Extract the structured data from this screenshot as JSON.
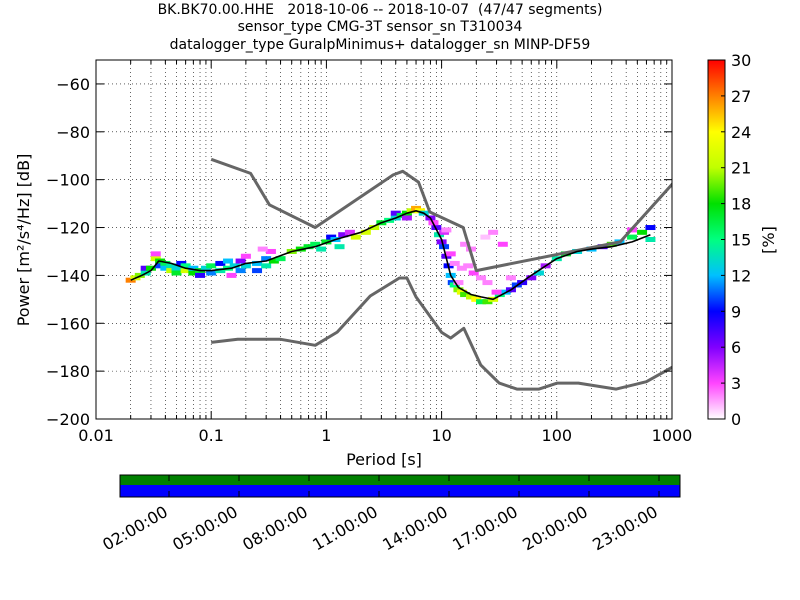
{
  "title": {
    "line1": "BK.BK70.00.HHE   2018-10-06 -- 2018-10-07  (47/47 segments)",
    "line2": "sensor_type CMG-3T sensor_sn T310034",
    "line3": "datalogger_type GuralpMinimus+ datalogger_sn MINP-DF59"
  },
  "chart_data": {
    "type": "heatmap",
    "xlabel": "Period [s]",
    "ylabel": "Power [m²/s⁴/Hz] [dB]",
    "xscale": "log",
    "xlim": [
      0.01,
      1000
    ],
    "ylim": [
      -200,
      -50
    ],
    "xticks": [
      {
        "value": 0.01,
        "label": "0.01"
      },
      {
        "value": 0.1,
        "label": "0.1"
      },
      {
        "value": 1,
        "label": "1"
      },
      {
        "value": 10,
        "label": "10"
      },
      {
        "value": 100,
        "label": "100"
      },
      {
        "value": 1000,
        "label": "1000"
      }
    ],
    "yticks": [
      {
        "value": -60,
        "label": "−60"
      },
      {
        "value": -80,
        "label": "−80"
      },
      {
        "value": -100,
        "label": "−100"
      },
      {
        "value": -120,
        "label": "−120"
      },
      {
        "value": -140,
        "label": "−140"
      },
      {
        "value": -160,
        "label": "−160"
      },
      {
        "value": -180,
        "label": "−180"
      },
      {
        "value": -200,
        "label": "−200"
      }
    ],
    "grid": true,
    "colorbar": {
      "label": "[%]",
      "range": [
        0,
        30
      ],
      "ticks": [
        "0",
        "3",
        "6",
        "9",
        "12",
        "15",
        "18",
        "21",
        "24",
        "27",
        "30"
      ],
      "colors": [
        "#ffffff",
        "#ff44ff",
        "#8000ff",
        "#0000ff",
        "#00c0ff",
        "#00ff80",
        "#00e000",
        "#c0ff00",
        "#ffff00",
        "#ff8000",
        "#ff0000"
      ]
    },
    "series": [
      {
        "id": "nhnm",
        "color": "#666666",
        "x": [
          0.1,
          0.22,
          0.32,
          0.8,
          3.8,
          4.6,
          6.3,
          7.9,
          15.4,
          20,
          354.8,
          10000
        ],
        "y": [
          -91.5,
          -97.4,
          -110.5,
          -120,
          -98,
          -96.5,
          -101,
          -113.5,
          -120,
          -138,
          -126,
          -48.5
        ]
      },
      {
        "id": "nlnm",
        "color": "#666666",
        "x": [
          0.1,
          0.17,
          0.4,
          0.8,
          1.24,
          2.4,
          4.3,
          5,
          6,
          10,
          12,
          15.6,
          21.9,
          31.6,
          45,
          70,
          101,
          154,
          328,
          600,
          10000
        ],
        "y": [
          -168,
          -166.7,
          -166.7,
          -169.2,
          -163.7,
          -148.6,
          -141.1,
          -141.1,
          -149,
          -163.8,
          -166.2,
          -162.1,
          -177.5,
          -185,
          -187.5,
          -187.5,
          -185,
          -185,
          -187.5,
          -184.4,
          -151.5
        ]
      },
      {
        "id": "mode",
        "color": "#000000",
        "x": [
          0.02,
          0.025,
          0.03,
          0.035,
          0.045,
          0.06,
          0.08,
          0.1,
          0.15,
          0.2,
          0.3,
          0.5,
          0.8,
          1.2,
          2,
          3,
          4,
          5,
          6,
          7,
          8,
          10,
          12,
          14,
          18,
          22,
          28,
          40,
          60,
          100,
          150,
          200,
          300,
          450,
          650
        ],
        "y": [
          -142,
          -140,
          -138,
          -134,
          -135,
          -137,
          -138,
          -138,
          -137,
          -135,
          -134,
          -130,
          -128,
          -125,
          -122,
          -118,
          -116,
          -114,
          -113,
          -114,
          -116,
          -125,
          -140,
          -145,
          -148,
          -149,
          -150,
          -146,
          -140,
          -133,
          -130,
          -129,
          -128,
          -126,
          -123
        ]
      }
    ],
    "density": [
      {
        "x": 0.02,
        "y": -142,
        "pct": 27
      },
      {
        "x": 0.022,
        "y": -141,
        "pct": 22
      },
      {
        "x": 0.024,
        "y": -140,
        "pct": 20
      },
      {
        "x": 0.027,
        "y": -139,
        "pct": 14
      },
      {
        "x": 0.027,
        "y": -137,
        "pct": 7
      },
      {
        "x": 0.03,
        "y": -137,
        "pct": 18
      },
      {
        "x": 0.033,
        "y": -133,
        "pct": 22
      },
      {
        "x": 0.033,
        "y": -131,
        "pct": 3
      },
      {
        "x": 0.036,
        "y": -134,
        "pct": 18
      },
      {
        "x": 0.036,
        "y": -136,
        "pct": 10
      },
      {
        "x": 0.04,
        "y": -135,
        "pct": 16
      },
      {
        "x": 0.04,
        "y": -137,
        "pct": 12
      },
      {
        "x": 0.045,
        "y": -136,
        "pct": 14
      },
      {
        "x": 0.045,
        "y": -138,
        "pct": 21
      },
      {
        "x": 0.05,
        "y": -137,
        "pct": 13
      },
      {
        "x": 0.05,
        "y": -139,
        "pct": 17
      },
      {
        "x": 0.055,
        "y": -135,
        "pct": 9
      },
      {
        "x": 0.06,
        "y": -138,
        "pct": 22
      },
      {
        "x": 0.06,
        "y": -136,
        "pct": 15
      },
      {
        "x": 0.07,
        "y": -139,
        "pct": 18
      },
      {
        "x": 0.07,
        "y": -137,
        "pct": 12
      },
      {
        "x": 0.08,
        "y": -138,
        "pct": 17
      },
      {
        "x": 0.08,
        "y": -140,
        "pct": 8
      },
      {
        "x": 0.09,
        "y": -137,
        "pct": 13
      },
      {
        "x": 0.1,
        "y": -139,
        "pct": 11
      },
      {
        "x": 0.1,
        "y": -136,
        "pct": 16
      },
      {
        "x": 0.12,
        "y": -138,
        "pct": 14
      },
      {
        "x": 0.12,
        "y": -135,
        "pct": 9
      },
      {
        "x": 0.14,
        "y": -137,
        "pct": 15
      },
      {
        "x": 0.14,
        "y": -134,
        "pct": 12
      },
      {
        "x": 0.16,
        "y": -136,
        "pct": 13
      },
      {
        "x": 0.18,
        "y": -138,
        "pct": 11
      },
      {
        "x": 0.18,
        "y": -134,
        "pct": 6
      },
      {
        "x": 0.2,
        "y": -136,
        "pct": 13
      },
      {
        "x": 0.2,
        "y": -132,
        "pct": 3
      },
      {
        "x": 0.25,
        "y": -135,
        "pct": 12
      },
      {
        "x": 0.25,
        "y": -138,
        "pct": 10
      },
      {
        "x": 0.3,
        "y": -133,
        "pct": 11
      },
      {
        "x": 0.3,
        "y": -136,
        "pct": 14
      },
      {
        "x": 0.35,
        "y": -134,
        "pct": 18
      },
      {
        "x": 0.4,
        "y": -133,
        "pct": 16
      },
      {
        "x": 0.5,
        "y": -130,
        "pct": 20
      },
      {
        "x": 0.6,
        "y": -129,
        "pct": 18
      },
      {
        "x": 0.7,
        "y": -128,
        "pct": 17
      },
      {
        "x": 0.8,
        "y": -127,
        "pct": 16
      },
      {
        "x": 0.9,
        "y": -129,
        "pct": 14
      },
      {
        "x": 1.0,
        "y": -126,
        "pct": 17
      },
      {
        "x": 1.1,
        "y": -124,
        "pct": 9
      },
      {
        "x": 1.2,
        "y": -125,
        "pct": 12
      },
      {
        "x": 1.4,
        "y": -123,
        "pct": 6
      },
      {
        "x": 1.6,
        "y": -122,
        "pct": 4
      },
      {
        "x": 1.3,
        "y": -128,
        "pct": 14
      },
      {
        "x": 1.8,
        "y": -124,
        "pct": 22
      },
      {
        "x": 2.2,
        "y": -122,
        "pct": 22
      },
      {
        "x": 2.6,
        "y": -120,
        "pct": 21
      },
      {
        "x": 3.0,
        "y": -118,
        "pct": 17
      },
      {
        "x": 3.5,
        "y": -117,
        "pct": 15
      },
      {
        "x": 4.0,
        "y": -116,
        "pct": 13
      },
      {
        "x": 4.0,
        "y": -114,
        "pct": 7
      },
      {
        "x": 4.5,
        "y": -115,
        "pct": 16
      },
      {
        "x": 5.0,
        "y": -114,
        "pct": 18
      },
      {
        "x": 5.0,
        "y": -116,
        "pct": 5
      },
      {
        "x": 5.5,
        "y": -113,
        "pct": 21
      },
      {
        "x": 6.0,
        "y": -112,
        "pct": 26
      },
      {
        "x": 6.5,
        "y": -113,
        "pct": 24
      },
      {
        "x": 7.0,
        "y": -114,
        "pct": 13
      },
      {
        "x": 8.0,
        "y": -116,
        "pct": 6
      },
      {
        "x": 9.0,
        "y": -120,
        "pct": 7
      },
      {
        "x": 9.5,
        "y": -123,
        "pct": 14
      },
      {
        "x": 10.0,
        "y": -126,
        "pct": 6
      },
      {
        "x": 10.5,
        "y": -128,
        "pct": 10
      },
      {
        "x": 11.0,
        "y": -132,
        "pct": 7
      },
      {
        "x": 11.5,
        "y": -136,
        "pct": 9
      },
      {
        "x": 12.0,
        "y": -140,
        "pct": 12
      },
      {
        "x": 12.5,
        "y": -143,
        "pct": 10
      },
      {
        "x": 13.0,
        "y": -144,
        "pct": 15
      },
      {
        "x": 14.0,
        "y": -146,
        "pct": 20
      },
      {
        "x": 15.0,
        "y": -147,
        "pct": 23
      },
      {
        "x": 16.0,
        "y": -148,
        "pct": 19
      },
      {
        "x": 18.0,
        "y": -149,
        "pct": 21
      },
      {
        "x": 20.0,
        "y": -150,
        "pct": 24
      },
      {
        "x": 22.0,
        "y": -151,
        "pct": 16
      },
      {
        "x": 25.0,
        "y": -151,
        "pct": 19
      },
      {
        "x": 28.0,
        "y": -150,
        "pct": 22
      },
      {
        "x": 32.0,
        "y": -148,
        "pct": 15
      },
      {
        "x": 36.0,
        "y": -147,
        "pct": 12
      },
      {
        "x": 40.0,
        "y": -146,
        "pct": 7
      },
      {
        "x": 45.0,
        "y": -144,
        "pct": 10
      },
      {
        "x": 50.0,
        "y": -143,
        "pct": 8
      },
      {
        "x": 60.0,
        "y": -141,
        "pct": 6
      },
      {
        "x": 70.0,
        "y": -139,
        "pct": 13
      },
      {
        "x": 80.0,
        "y": -136,
        "pct": 5
      },
      {
        "x": 100.0,
        "y": -133,
        "pct": 14
      },
      {
        "x": 120.0,
        "y": -131,
        "pct": 17
      },
      {
        "x": 150.0,
        "y": -130,
        "pct": 13
      },
      {
        "x": 200.0,
        "y": -129,
        "pct": 12
      },
      {
        "x": 250.0,
        "y": -128,
        "pct": 7
      },
      {
        "x": 300.0,
        "y": -127,
        "pct": 19
      },
      {
        "x": 350.0,
        "y": -126,
        "pct": 12
      },
      {
        "x": 450.0,
        "y": -124,
        "pct": 16
      },
      {
        "x": 450.0,
        "y": -121,
        "pct": 3
      },
      {
        "x": 550.0,
        "y": -122,
        "pct": 18
      },
      {
        "x": 650.0,
        "y": -125,
        "pct": 14
      },
      {
        "x": 650.0,
        "y": -120,
        "pct": 9
      },
      {
        "x": 8.5,
        "y": -118,
        "pct": 3
      },
      {
        "x": 10.5,
        "y": -122,
        "pct": 4
      },
      {
        "x": 12.0,
        "y": -131,
        "pct": 3
      },
      {
        "x": 13.0,
        "y": -135,
        "pct": 2
      },
      {
        "x": 15.0,
        "y": -137,
        "pct": 2
      },
      {
        "x": 17.0,
        "y": -136,
        "pct": 2
      },
      {
        "x": 19.0,
        "y": -139,
        "pct": 3
      },
      {
        "x": 22.0,
        "y": -141,
        "pct": 2
      },
      {
        "x": 25.0,
        "y": -143,
        "pct": 2
      },
      {
        "x": 30.0,
        "y": -147,
        "pct": 3
      },
      {
        "x": 14.0,
        "y": -143,
        "pct": 2
      },
      {
        "x": 18.0,
        "y": -129,
        "pct": 2
      },
      {
        "x": 16.0,
        "y": -127,
        "pct": 2
      },
      {
        "x": 24.0,
        "y": -124,
        "pct": 1
      },
      {
        "x": 28.0,
        "y": -122,
        "pct": 2
      },
      {
        "x": 34.0,
        "y": -127,
        "pct": 3
      },
      {
        "x": 11.0,
        "y": -121,
        "pct": 2
      },
      {
        "x": 40.0,
        "y": -141,
        "pct": 2
      },
      {
        "x": 0.33,
        "y": -130,
        "pct": 3
      },
      {
        "x": 0.28,
        "y": -129,
        "pct": 2
      },
      {
        "x": 0.15,
        "y": -140,
        "pct": 3
      }
    ]
  },
  "timeline": {
    "ticks": [
      "02:00:00",
      "05:00:00",
      "08:00:00",
      "11:00:00",
      "14:00:00",
      "17:00:00",
      "20:00:00",
      "23:00:00"
    ],
    "top_color": "#008000",
    "bottom_color": "#0000ff",
    "segments": 47
  }
}
